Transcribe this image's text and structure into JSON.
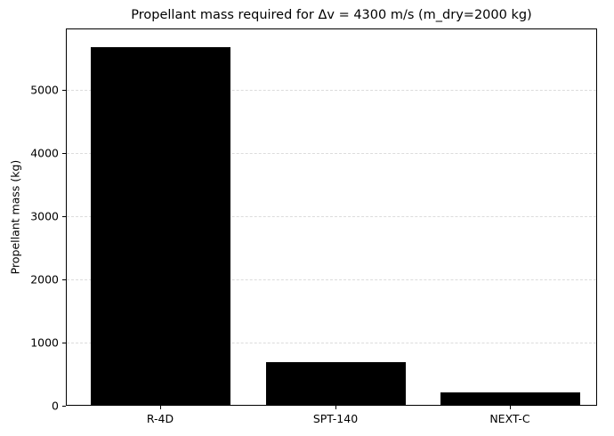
{
  "chart_data": {
    "type": "bar",
    "title": "Propellant mass required for Δv = 4300 m/s (m_dry=2000 kg)",
    "xlabel": "",
    "ylabel": "Propellant mass (kg)",
    "categories": [
      "R-4D",
      "SPT-140",
      "NEXT-C"
    ],
    "values": [
      5670,
      690,
      210
    ],
    "ylim": [
      0,
      5960
    ],
    "yticks": [
      0,
      1000,
      2000,
      3000,
      4000,
      5000
    ],
    "grid": {
      "y": true,
      "x": false,
      "style": "dashed",
      "color": "#dcdcdc"
    },
    "bar_color": "#000000",
    "legend": null
  },
  "labels": {
    "title": "Propellant mass required for Δv = 4300 m/s (m_dry=2000 kg)",
    "ylabel": "Propellant mass (kg)",
    "yticks": [
      "0",
      "1000",
      "2000",
      "3000",
      "4000",
      "5000"
    ],
    "xticks": [
      "R-4D",
      "SPT-140",
      "NEXT-C"
    ]
  }
}
